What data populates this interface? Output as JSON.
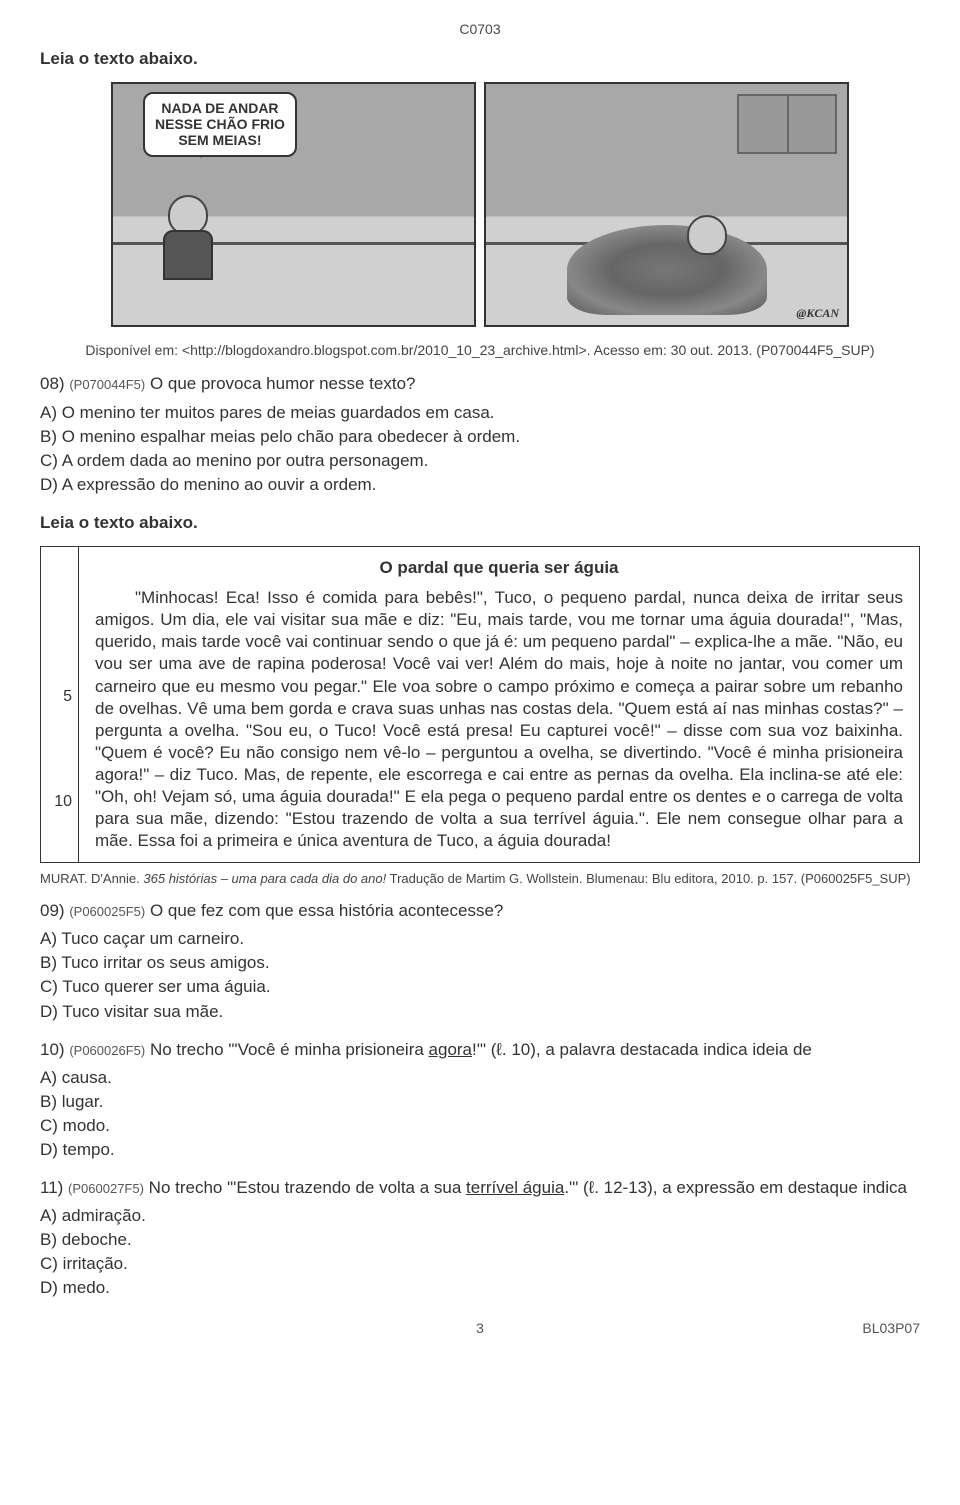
{
  "header_code": "C0703",
  "instruction_1": "Leia o texto abaixo.",
  "speech_bubble": "NADA DE ANDAR\nNESSE CHÃO FRIO\nSEM MEIAS!",
  "signature": "@KCAN",
  "source_1": "Disponível em: <http://blogdoxandro.blogspot.com.br/2010_10_23_archive.html>. Acesso em: 30 out. 2013. (P070044F5_SUP)",
  "q08": {
    "number": "08)",
    "code": "(P070044F5)",
    "text": "O que provoca humor nesse texto?",
    "a": "A) O menino ter muitos pares de meias guardados em casa.",
    "b": "B) O menino espalhar meias pelo chão para obedecer à ordem.",
    "c": "C) A ordem dada ao menino por outra personagem.",
    "d": "D) A expressão do menino ao ouvir a ordem."
  },
  "instruction_2": "Leia o texto abaixo.",
  "story": {
    "title": "O pardal que queria ser águia",
    "ln5": "5",
    "ln10": "10",
    "body": "\"Minhocas! Eca! Isso é comida para bebês!\", Tuco, o pequeno pardal, nunca deixa de irritar seus amigos. Um dia, ele vai visitar sua mãe e diz: \"Eu, mais tarde, vou me tornar uma águia dourada!\", \"Mas, querido, mais tarde você vai continuar sendo o que já é: um pequeno pardal\" – explica-lhe a mãe. \"Não, eu vou ser uma ave de rapina poderosa! Você vai ver! Além do mais, hoje à noite no jantar, vou comer um carneiro que eu mesmo vou pegar.\" Ele voa sobre o campo próximo e começa a pairar sobre um rebanho de ovelhas. Vê uma bem gorda e crava suas unhas nas costas dela. \"Quem está aí nas minhas costas?\" – pergunta a ovelha. \"Sou eu, o Tuco! Você está presa! Eu capturei você!\" – disse com sua voz baixinha. \"Quem é você? Eu não consigo nem vê-lo – perguntou a ovelha, se divertindo. \"Você é minha prisioneira agora!\" – diz Tuco. Mas, de repente, ele escorrega e cai entre as pernas da ovelha. Ela inclina-se até ele: \"Oh, oh! Vejam só, uma águia dourada!\" E ela pega o pequeno pardal entre os dentes e o carrega de volta para sua mãe, dizendo: \"Estou trazendo de volta a sua terrível águia.\". Ele nem consegue olhar para a mãe. Essa foi a primeira e única aventura de Tuco, a águia dourada!"
  },
  "story_source_prefix": "MURAT. D'Annie. ",
  "story_source_italic": "365 histórias – uma para cada dia do ano!",
  "story_source_suffix": " Tradução de Martim G. Wollstein. Blumenau: Blu editora, 2010. p. 157. (P060025F5_SUP)",
  "q09": {
    "number": "09)",
    "code": "(P060025F5)",
    "text": "O que fez com que essa história acontecesse?",
    "a": "A) Tuco caçar um carneiro.",
    "b": "B) Tuco irritar os seus amigos.",
    "c": "C) Tuco querer ser uma águia.",
    "d": "D) Tuco visitar sua mãe."
  },
  "q10": {
    "number": "10)",
    "code": "(P060026F5)",
    "text_pre": "No trecho \"'Você é minha prisioneira ",
    "underline": "agora",
    "text_post": "!'\" (ℓ. 10), a palavra destacada indica ideia de",
    "a": "A) causa.",
    "b": "B) lugar.",
    "c": "C) modo.",
    "d": "D) tempo."
  },
  "q11": {
    "number": "11)",
    "code": "(P060027F5)",
    "text_pre": "No trecho \"'Estou trazendo de volta a sua ",
    "underline": "terrível águia",
    "text_post": ".'\" (ℓ. 12-13), a expressão em destaque indica",
    "a": "A) admiração.",
    "b": "B) deboche.",
    "c": "C) irritação.",
    "d": "D) medo."
  },
  "footer": {
    "page": "3",
    "code": "BL03P07"
  }
}
